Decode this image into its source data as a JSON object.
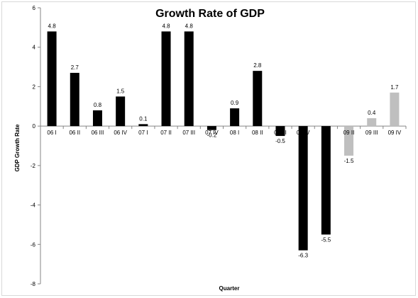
{
  "chart_data": {
    "type": "bar",
    "title": "Growth Rate of GDP",
    "xlabel": "Quarter",
    "ylabel": "GDP Growth Rate",
    "ylim": [
      -8,
      6
    ],
    "yticks": [
      6,
      4,
      2,
      0,
      -2,
      -4,
      -6,
      -8
    ],
    "grid": false,
    "legend": "none",
    "categories": [
      "06 I",
      "06 II",
      "06 III",
      "06 IV",
      "07 I",
      "07 II",
      "07 III",
      "07 IV",
      "08 I",
      "08 II",
      "08 III",
      "08 IV",
      "09 I",
      "09 II",
      "09 III",
      "09 IV"
    ],
    "values": [
      4.8,
      2.7,
      0.8,
      1.5,
      0.1,
      4.8,
      4.8,
      -0.2,
      0.9,
      2.8,
      -0.5,
      -6.3,
      -5.5,
      -1.5,
      0.4,
      1.7
    ],
    "colors": [
      "#000000",
      "#000000",
      "#000000",
      "#000000",
      "#000000",
      "#000000",
      "#000000",
      "#000000",
      "#000000",
      "#000000",
      "#000000",
      "#000000",
      "#000000",
      "#bfbfbf",
      "#bfbfbf",
      "#bfbfbf"
    ]
  }
}
